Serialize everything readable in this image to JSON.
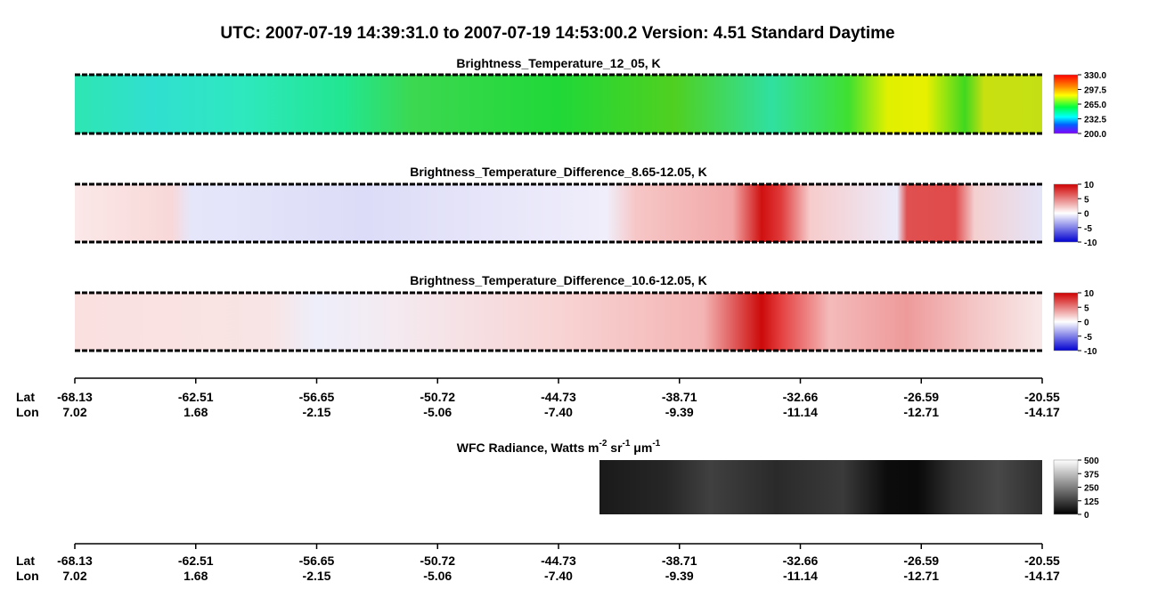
{
  "title": "UTC:  2007-07-19   14:39:31.0  to  2007-07-19   14:53:00.2    Version: 4.51  Standard Daytime",
  "panels": [
    {
      "title": "Brightness_Temperature_12_05, K",
      "colorbar": [
        {
          "value": 330,
          "label": "330.0"
        },
        297.5,
        {
          "value": 265,
          "label": "265.0"
        },
        232.5,
        {
          "value": 200,
          "label": "200.0"
        }
      ]
    },
    {
      "title": "Brightness_Temperature_Difference_8.65-12.05, K",
      "colorbar": [
        10,
        5,
        0,
        -5,
        -10
      ]
    },
    {
      "title": "Brightness_Temperature_Difference_10.6-12.05, K",
      "colorbar": [
        10,
        5,
        0,
        -5,
        -10
      ]
    },
    {
      "title": [
        "WFC Radiance, Watts m",
        "-2",
        " sr",
        "-1",
        " μm",
        "-1"
      ],
      "colorbar": [
        500,
        375,
        250,
        125,
        0
      ]
    }
  ],
  "axis": {
    "lat_label": "Lat",
    "lon_label": "Lon",
    "lat": [
      -68.13,
      -62.51,
      -56.65,
      -50.72,
      -44.73,
      -38.71,
      -32.66,
      -26.59,
      -20.55
    ],
    "lon": [
      7.02,
      1.68,
      -2.15,
      -5.06,
      {
        "value": -7.4,
        "label": "-7.40"
      },
      -9.39,
      -11.14,
      -12.71,
      -14.17
    ]
  }
}
